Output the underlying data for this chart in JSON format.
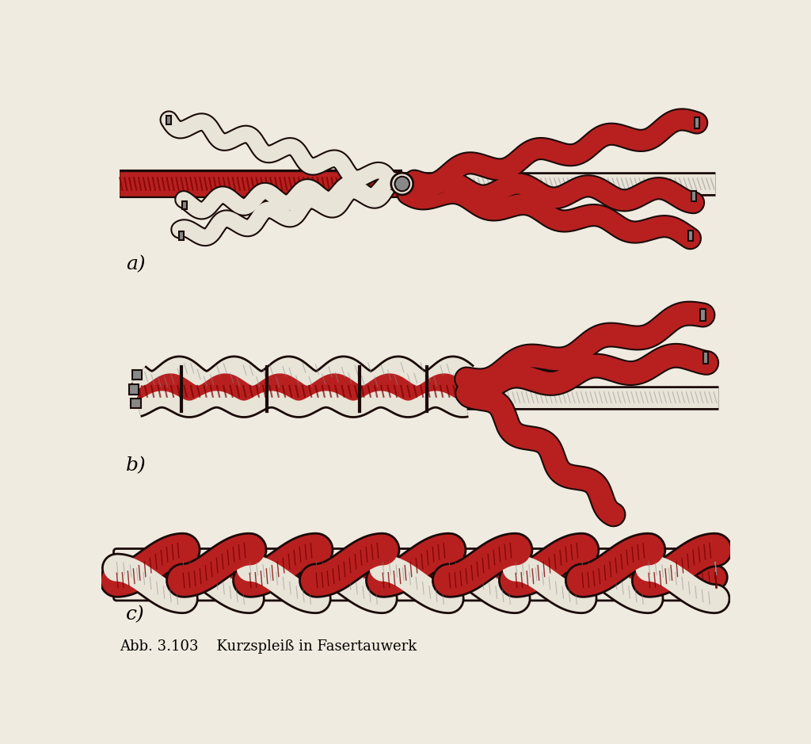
{
  "title": "Abb. 3.103    Kurzspleiß in Fasertauwerk",
  "bg": "#f0ebe0",
  "red": "#b82020",
  "red_dark": "#7a0000",
  "white_rope": "#e8e4d8",
  "grey": "#888888",
  "dark": "#1a0a08",
  "label_a": "a)",
  "label_b": "b)",
  "label_c": "c)",
  "fig_w": 10.24,
  "fig_h": 9.39,
  "dpi": 100
}
